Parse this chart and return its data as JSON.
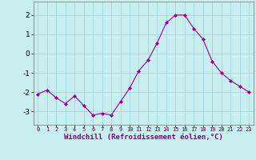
{
  "x": [
    0,
    1,
    2,
    3,
    4,
    5,
    6,
    7,
    8,
    9,
    10,
    11,
    12,
    13,
    14,
    15,
    16,
    17,
    18,
    19,
    20,
    21,
    22,
    23
  ],
  "y": [
    -2.1,
    -1.9,
    -2.3,
    -2.6,
    -2.2,
    -2.7,
    -3.2,
    -3.1,
    -3.2,
    -2.5,
    -1.8,
    -0.9,
    -0.35,
    0.55,
    1.6,
    2.0,
    2.0,
    1.3,
    0.75,
    -0.4,
    -1.0,
    -1.4,
    -1.7,
    -2.0
  ],
  "line_color": "#990099",
  "marker_color": "#990099",
  "bg_color": "#c8eef0",
  "grid_color": "#a0d8dc",
  "xlabel": "Windchill (Refroidissement éolien,°C)",
  "xlabel_color": "#800080",
  "ylim": [
    -3.7,
    2.7
  ],
  "yticks": [
    -3,
    -2,
    -1,
    0,
    1,
    2
  ],
  "xticks": [
    0,
    1,
    2,
    3,
    4,
    5,
    6,
    7,
    8,
    9,
    10,
    11,
    12,
    13,
    14,
    15,
    16,
    17,
    18,
    19,
    20,
    21,
    22,
    23
  ],
  "xlim": [
    -0.5,
    23.5
  ]
}
